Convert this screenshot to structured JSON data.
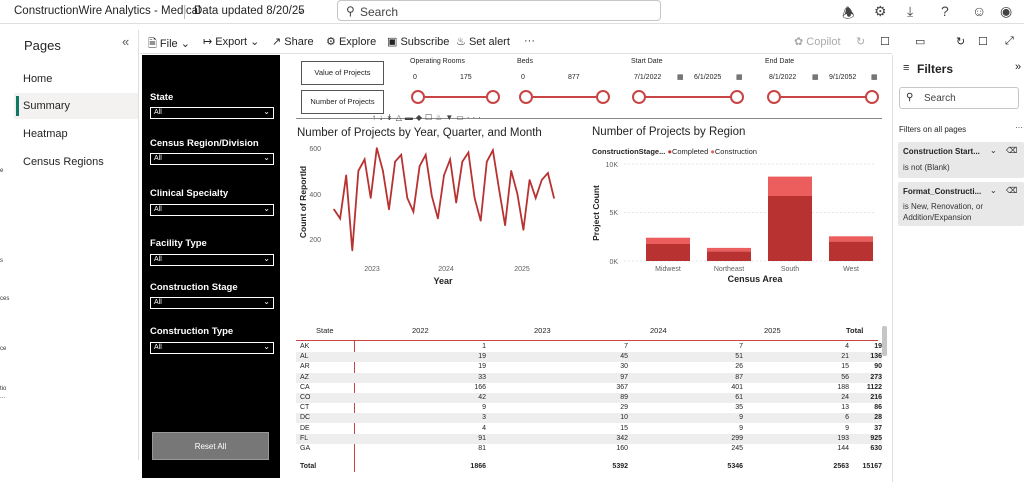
{
  "topbar": {
    "app_name": "ConstructionWire Analytics - Medical",
    "data_updated": "Data updated 8/20/25",
    "search_placeholder": "Search"
  },
  "pages_pane": {
    "title": "Pages",
    "items": [
      "Home",
      "Summary",
      "Heatmap",
      "Census Regions"
    ],
    "selected": "Summary"
  },
  "left_fragments": [
    "e",
    "s",
    "ces",
    "ce",
    "tio",
    "..."
  ],
  "toolbar": {
    "file": "File",
    "export": "Export",
    "share": "Share",
    "explore": "Explore",
    "subscribe": "Subscribe",
    "set_alert": "Set alert",
    "more": "···",
    "copilot": "Copilot"
  },
  "slicers": [
    {
      "label": "State",
      "value": "All"
    },
    {
      "label": "Census Region/Division",
      "value": "All"
    },
    {
      "label": "Clinical Specialty",
      "value": "All"
    },
    {
      "label": "Facility Type",
      "value": "All"
    },
    {
      "label": "Construction Stage",
      "value": "All"
    },
    {
      "label": "Construction Type",
      "value": "All"
    }
  ],
  "reset_button": "Reset All",
  "kpi_buttons": [
    "Value of Projects",
    "Number of Projects"
  ],
  "range_slicers": [
    {
      "title": "Operating Rooms",
      "min": "0",
      "max": "175"
    },
    {
      "title": "Beds",
      "min": "0",
      "max": "877"
    },
    {
      "title": "Start Date",
      "min": "7/1/2022",
      "max": "6/1/2025"
    },
    {
      "title": "End Date",
      "min": "8/1/2022",
      "max": "9/1/2052"
    }
  ],
  "colors": {
    "accent": "#c94545",
    "completed": "#b83232",
    "construction": "#ec5d5d",
    "page_selected_bar": "#117865"
  },
  "line_chart": {
    "title": "Number of Projects by Year, Quarter, and Month",
    "xlabel": "Year",
    "ylabel": "Count of ReportId",
    "yticks": [
      "600",
      "400",
      "200"
    ],
    "xticks": [
      "2023",
      "2024",
      "2025"
    ]
  },
  "bar_chart": {
    "title": "Number of Projects by Region",
    "legend_title": "ConstructionStage...",
    "legend": [
      "Completed",
      "Construction"
    ],
    "xlabel": "Census Area",
    "ylabel": "Project Count",
    "yticks": [
      "10K",
      "5K",
      "0K"
    ]
  },
  "chart_data": [
    {
      "type": "line",
      "title": "Number of Projects by Year, Quarter, and Month",
      "xlabel": "Year",
      "ylabel": "Count of ReportId",
      "ylim": [
        100,
        650
      ],
      "x_range": [
        "2022-08",
        "2025-08"
      ],
      "x": [
        "2022-08",
        "2022-09",
        "2022-10",
        "2022-11",
        "2022-12",
        "2023-01",
        "2023-02",
        "2023-03",
        "2023-04",
        "2023-05",
        "2023-06",
        "2023-07",
        "2023-08",
        "2023-09",
        "2023-10",
        "2023-11",
        "2023-12",
        "2024-01",
        "2024-02",
        "2024-03",
        "2024-04",
        "2024-05",
        "2024-06",
        "2024-07",
        "2024-08",
        "2024-09",
        "2024-10",
        "2024-11",
        "2024-12",
        "2025-01",
        "2025-02",
        "2025-03",
        "2025-04",
        "2025-05",
        "2025-06",
        "2025-07",
        "2025-08"
      ],
      "values": [
        330,
        290,
        480,
        150,
        500,
        550,
        380,
        600,
        500,
        330,
        540,
        570,
        380,
        320,
        520,
        570,
        390,
        290,
        480,
        550,
        360,
        540,
        580,
        380,
        280,
        540,
        590,
        420,
        260,
        500,
        400,
        240,
        460,
        380,
        460,
        490,
        380
      ]
    },
    {
      "type": "bar",
      "title": "Number of Projects by Region",
      "categories": [
        "Midwest",
        "Northeast",
        "South",
        "West"
      ],
      "xlabel": "Census Area",
      "ylabel": "Project Count",
      "ylim": [
        0,
        10000
      ],
      "stacked": true,
      "series": [
        {
          "name": "Completed",
          "values": [
            1750,
            1000,
            6700,
            2000
          ]
        },
        {
          "name": "Construction",
          "values": [
            650,
            350,
            2000,
            550
          ]
        }
      ]
    }
  ],
  "matrix": {
    "headers": [
      "State",
      "2022",
      "2023",
      "2024",
      "2025",
      "Total"
    ],
    "rows": [
      [
        "AK",
        "1",
        "7",
        "7",
        "4",
        "19"
      ],
      [
        "AL",
        "19",
        "45",
        "51",
        "21",
        "136"
      ],
      [
        "AR",
        "19",
        "30",
        "26",
        "15",
        "90"
      ],
      [
        "AZ",
        "33",
        "97",
        "87",
        "56",
        "273"
      ],
      [
        "CA",
        "166",
        "367",
        "401",
        "188",
        "1122"
      ],
      [
        "CO",
        "42",
        "89",
        "61",
        "24",
        "216"
      ],
      [
        "CT",
        "9",
        "29",
        "35",
        "13",
        "86"
      ],
      [
        "DC",
        "3",
        "10",
        "9",
        "6",
        "28"
      ],
      [
        "DE",
        "4",
        "15",
        "9",
        "9",
        "37"
      ],
      [
        "FL",
        "91",
        "342",
        "299",
        "193",
        "925"
      ],
      [
        "GA",
        "81",
        "160",
        "245",
        "144",
        "630"
      ]
    ],
    "total": [
      "Total",
      "1866",
      "5392",
      "5346",
      "2563",
      "15167"
    ]
  },
  "filters_pane": {
    "title": "Filters",
    "search_placeholder": "Search",
    "section": "Filters on all pages",
    "cards": [
      {
        "title": "Construction Start...",
        "summary": "is not (Blank)"
      },
      {
        "title": "Format_Constructi...",
        "summary": "is New, Renovation, or Addition/Expansion"
      }
    ]
  }
}
